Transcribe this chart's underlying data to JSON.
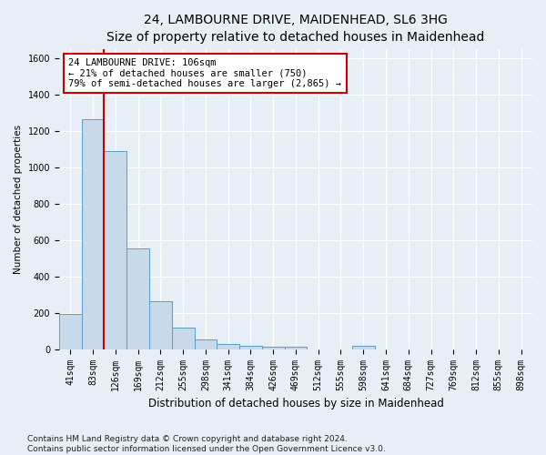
{
  "title1": "24, LAMBOURNE DRIVE, MAIDENHEAD, SL6 3HG",
  "title2": "Size of property relative to detached houses in Maidenhead",
  "xlabel": "Distribution of detached houses by size in Maidenhead",
  "ylabel": "Number of detached properties",
  "categories": [
    "41sqm",
    "83sqm",
    "126sqm",
    "169sqm",
    "212sqm",
    "255sqm",
    "298sqm",
    "341sqm",
    "384sqm",
    "426sqm",
    "469sqm",
    "512sqm",
    "555sqm",
    "598sqm",
    "641sqm",
    "684sqm",
    "727sqm",
    "769sqm",
    "812sqm",
    "855sqm",
    "898sqm"
  ],
  "bar_values": [
    195,
    1265,
    1090,
    555,
    265,
    120,
    55,
    30,
    20,
    15,
    15,
    0,
    0,
    20,
    0,
    0,
    0,
    0,
    0,
    0,
    0
  ],
  "bar_color": "#c8d9ea",
  "bar_edge_color": "#5b9dc9",
  "vline_x": 1.5,
  "vline_color": "#cc0000",
  "annotation_text": "24 LAMBOURNE DRIVE: 106sqm\n← 21% of detached houses are smaller (750)\n79% of semi-detached houses are larger (2,865) →",
  "annotation_box_color": "#ffffff",
  "annotation_edge_color": "#cc0000",
  "ylim": [
    0,
    1650
  ],
  "yticks": [
    0,
    200,
    400,
    600,
    800,
    1000,
    1200,
    1400,
    1600
  ],
  "footer1": "Contains HM Land Registry data © Crown copyright and database right 2024.",
  "footer2": "Contains public sector information licensed under the Open Government Licence v3.0.",
  "background_color": "#e8eef5",
  "plot_background_color": "#e8eef5",
  "grid_color": "#ffffff",
  "title1_fontsize": 10,
  "title2_fontsize": 9,
  "xlabel_fontsize": 8.5,
  "ylabel_fontsize": 7.5,
  "tick_fontsize": 7,
  "annotation_fontsize": 7.5,
  "footer_fontsize": 6.5
}
